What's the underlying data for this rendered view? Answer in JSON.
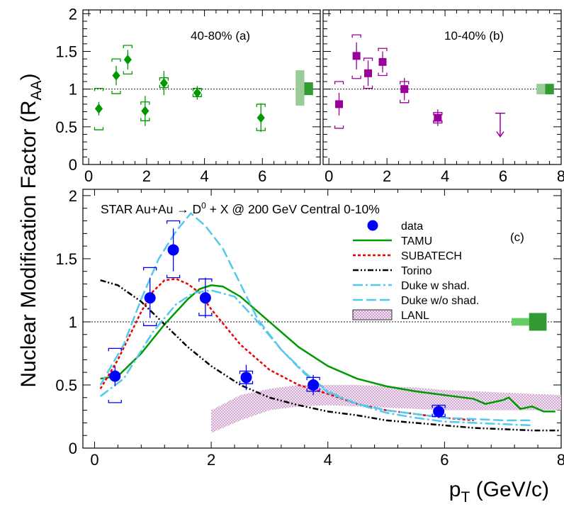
{
  "figure": {
    "ylabel_main": "Nuclear Modification Factor (R",
    "ylabel_sub": "AA",
    "ylabel_close": ")",
    "xlabel_main": "p",
    "xlabel_sub": "T",
    "xlabel_rest": " (GeV/c)"
  },
  "chart_data": [
    {
      "type": "scatter",
      "id": "a",
      "annotation": "40-80%  (a)",
      "xlim": [
        -0.2,
        8.0
      ],
      "ylim": [
        0,
        2.05
      ],
      "xticks": [
        "0",
        "2",
        "4",
        "6"
      ],
      "yticks": [
        "0",
        "0.5",
        "1",
        "1.5",
        "2"
      ],
      "reference_line": 1,
      "color": "#009900",
      "marker": "diamond",
      "points": [
        {
          "x": 0.35,
          "y": 0.74,
          "stat": 0.09,
          "sys_lo": 0.28,
          "sys_hi": 0.27
        },
        {
          "x": 0.95,
          "y": 1.18,
          "stat": 0.13,
          "sys_lo": 0.24,
          "sys_hi": 0.22
        },
        {
          "x": 1.35,
          "y": 1.39,
          "stat": 0.13,
          "sys_lo": 0.19,
          "sys_hi": 0.19
        },
        {
          "x": 1.95,
          "y": 0.71,
          "stat": 0.2,
          "sys_lo": 0.13,
          "sys_hi": 0.12
        },
        {
          "x": 2.6,
          "y": 1.08,
          "stat": 0.16,
          "sys_lo": 0.06,
          "sys_hi": 0.07
        },
        {
          "x": 3.75,
          "y": 0.95,
          "stat": 0.09,
          "sys_lo": 0.05,
          "sys_hi": 0.06
        },
        {
          "x": 5.95,
          "y": 0.62,
          "stat": 0.19,
          "sys_lo": 0.17,
          "sys_hi": 0.18
        }
      ],
      "norm_boxes": [
        {
          "x0": 7.15,
          "x1": 7.45,
          "y0": 0.78,
          "y1": 1.25,
          "color": "#99cc99"
        },
        {
          "x0": 7.45,
          "x1": 7.75,
          "y0": 0.92,
          "y1": 1.09,
          "color": "#339933"
        }
      ]
    },
    {
      "type": "scatter",
      "id": "b",
      "annotation": "10-40%  (b)",
      "xlim": [
        -0.2,
        8.0
      ],
      "ylim": [
        0,
        2.05
      ],
      "xticks": [
        "0",
        "2",
        "4",
        "6",
        "8"
      ],
      "yticks": [],
      "reference_line": 1,
      "color": "#990099",
      "marker": "square",
      "points": [
        {
          "x": 0.35,
          "y": 0.8,
          "stat": 0.15,
          "sys_lo": 0.32,
          "sys_hi": 0.3
        },
        {
          "x": 0.95,
          "y": 1.44,
          "stat": 0.18,
          "sys_lo": 0.3,
          "sys_hi": 0.28
        },
        {
          "x": 1.35,
          "y": 1.21,
          "stat": 0.17,
          "sys_lo": 0.2,
          "sys_hi": 0.2
        },
        {
          "x": 1.85,
          "y": 1.36,
          "stat": 0.14,
          "sys_lo": 0.18,
          "sys_hi": 0.18
        },
        {
          "x": 2.6,
          "y": 1.0,
          "stat": 0.15,
          "sys_lo": 0.18,
          "sys_hi": 0.1
        },
        {
          "x": 3.75,
          "y": 0.62,
          "stat": 0.11,
          "sys_lo": 0.07,
          "sys_hi": 0.07
        }
      ],
      "upper_limit": {
        "x": 5.9,
        "y_top": 0.68,
        "y_bottom": 0.37
      },
      "norm_boxes": [
        {
          "x0": 7.15,
          "x1": 7.45,
          "y0": 0.93,
          "y1": 1.07,
          "color": "#99cc99"
        },
        {
          "x0": 7.45,
          "x1": 7.75,
          "y0": 0.93,
          "y1": 1.07,
          "color": "#339933"
        }
      ]
    },
    {
      "type": "line",
      "id": "c",
      "title": "STAR Au+Au → D",
      "title_sup": "0",
      "title_rest": " + X @ 200 GeV Central 0-10%",
      "annotation": "(c)",
      "xlim": [
        -0.2,
        8.0
      ],
      "ylim": [
        0,
        2.05
      ],
      "xticks": [
        "0",
        "2",
        "4",
        "6",
        "8"
      ],
      "yticks": [
        "0",
        "0.5",
        "1",
        "1.5",
        "2"
      ],
      "reference_line": 1,
      "data": {
        "name": "data",
        "color": "#0000ff",
        "points": [
          {
            "x": 0.35,
            "y": 0.57,
            "stat": 0.08,
            "sys_lo": 0.21,
            "sys_hi": 0.22
          },
          {
            "x": 0.95,
            "y": 1.19,
            "stat": 0.16,
            "sys_lo": 0.22,
            "sys_hi": 0.24
          },
          {
            "x": 1.35,
            "y": 1.57,
            "stat": 0.17,
            "sys_lo": 0.22,
            "sys_hi": 0.23
          },
          {
            "x": 1.9,
            "y": 1.19,
            "stat": 0.16,
            "sys_lo": 0.14,
            "sys_hi": 0.15
          },
          {
            "x": 2.6,
            "y": 0.56,
            "stat": 0.1,
            "sys_lo": 0.05,
            "sys_hi": 0.05
          },
          {
            "x": 3.75,
            "y": 0.5,
            "stat": 0.08,
            "sys_lo": 0.05,
            "sys_hi": 0.06
          },
          {
            "x": 5.9,
            "y": 0.29,
            "stat": 0.05,
            "sys_lo": 0.04,
            "sys_hi": 0.05
          }
        ]
      },
      "series": [
        {
          "name": "TAMU",
          "color": "#009900",
          "dash": "",
          "x": [
            0.1,
            0.4,
            0.8,
            1.2,
            1.6,
            1.8,
            2.0,
            2.2,
            2.5,
            3.0,
            3.5,
            4.0,
            4.5,
            5.0,
            5.5,
            6.0,
            6.5,
            6.7,
            6.9,
            7.0,
            7.1,
            7.3,
            7.5,
            7.7,
            7.9
          ],
          "y": [
            0.55,
            0.57,
            0.75,
            0.98,
            1.18,
            1.26,
            1.29,
            1.28,
            1.2,
            1.0,
            0.8,
            0.65,
            0.55,
            0.49,
            0.45,
            0.42,
            0.39,
            0.35,
            0.37,
            0.38,
            0.4,
            0.31,
            0.33,
            0.29,
            0.29
          ]
        },
        {
          "name": "SUBATECH",
          "color": "#ee0000",
          "dash": "4,3",
          "x": [
            0.1,
            0.4,
            0.8,
            1.0,
            1.2,
            1.4,
            1.6,
            1.8,
            2.0,
            2.5,
            3.0,
            3.5,
            4.0,
            4.5,
            5.0,
            5.5,
            6.0,
            6.5
          ],
          "y": [
            0.47,
            0.7,
            1.08,
            1.24,
            1.33,
            1.34,
            1.3,
            1.23,
            1.1,
            0.82,
            0.62,
            0.5,
            0.43,
            0.35,
            0.3,
            0.27,
            0.24,
            0.22
          ]
        },
        {
          "name": "Torino",
          "color": "#000000",
          "dash": "8,3,2,3,2,3",
          "x": [
            0.1,
            0.4,
            0.8,
            1.2,
            1.6,
            2.0,
            2.5,
            3.0,
            3.5,
            4.0,
            4.5,
            5.0,
            5.5,
            6.0,
            6.5,
            7.0,
            7.5,
            8.0
          ],
          "y": [
            1.33,
            1.29,
            1.16,
            0.98,
            0.8,
            0.65,
            0.5,
            0.4,
            0.34,
            0.29,
            0.26,
            0.22,
            0.2,
            0.18,
            0.16,
            0.15,
            0.14,
            0.14
          ]
        },
        {
          "name": "Duke w shad.",
          "color": "#55c8ee",
          "dash": "14,4,3,4",
          "x": [
            0.1,
            0.5,
            1.0,
            1.4,
            1.7,
            2.0,
            2.4,
            2.8,
            3.2,
            3.6,
            4.0,
            4.5,
            5.0,
            5.5,
            6.0,
            6.5,
            7.0,
            7.5
          ],
          "y": [
            0.41,
            0.55,
            0.92,
            1.14,
            1.23,
            1.25,
            1.2,
            1.0,
            0.78,
            0.6,
            0.45,
            0.35,
            0.28,
            0.24,
            0.21,
            0.2,
            0.19,
            0.18
          ]
        },
        {
          "name": "Duke w/o shad.",
          "color": "#55c8ee",
          "dash": "14,5",
          "x": [
            0.1,
            0.5,
            0.8,
            1.1,
            1.4,
            1.65,
            1.9,
            2.2,
            2.5,
            2.8,
            3.2,
            3.6,
            4.0,
            4.5,
            5.0,
            5.5,
            6.0,
            6.5,
            7.0,
            7.5
          ],
          "y": [
            0.5,
            0.82,
            1.18,
            1.5,
            1.72,
            1.86,
            1.76,
            1.58,
            1.3,
            1.02,
            0.78,
            0.59,
            0.44,
            0.35,
            0.3,
            0.27,
            0.24,
            0.23,
            0.22,
            0.22
          ]
        },
        {
          "name": "LANL",
          "color": "#cc99cc",
          "fill": true,
          "x": [
            2.0,
            2.5,
            3.0,
            3.5,
            4.0,
            4.5,
            5.0,
            5.5,
            6.0,
            6.5,
            7.0,
            7.5,
            8.0
          ],
          "y_low": [
            0.12,
            0.22,
            0.3,
            0.33,
            0.34,
            0.33,
            0.32,
            0.31,
            0.3,
            0.3,
            0.3,
            0.3,
            0.3
          ],
          "y_high": [
            0.3,
            0.42,
            0.47,
            0.5,
            0.5,
            0.5,
            0.49,
            0.48,
            0.46,
            0.45,
            0.44,
            0.43,
            0.42
          ]
        }
      ],
      "norm_boxes": [
        {
          "x0": 7.15,
          "x1": 7.45,
          "y0": 0.97,
          "y1": 1.03,
          "color": "#66cc66"
        },
        {
          "x0": 7.45,
          "x1": 7.75,
          "y0": 0.93,
          "y1": 1.07,
          "color": "#339933"
        }
      ]
    }
  ]
}
